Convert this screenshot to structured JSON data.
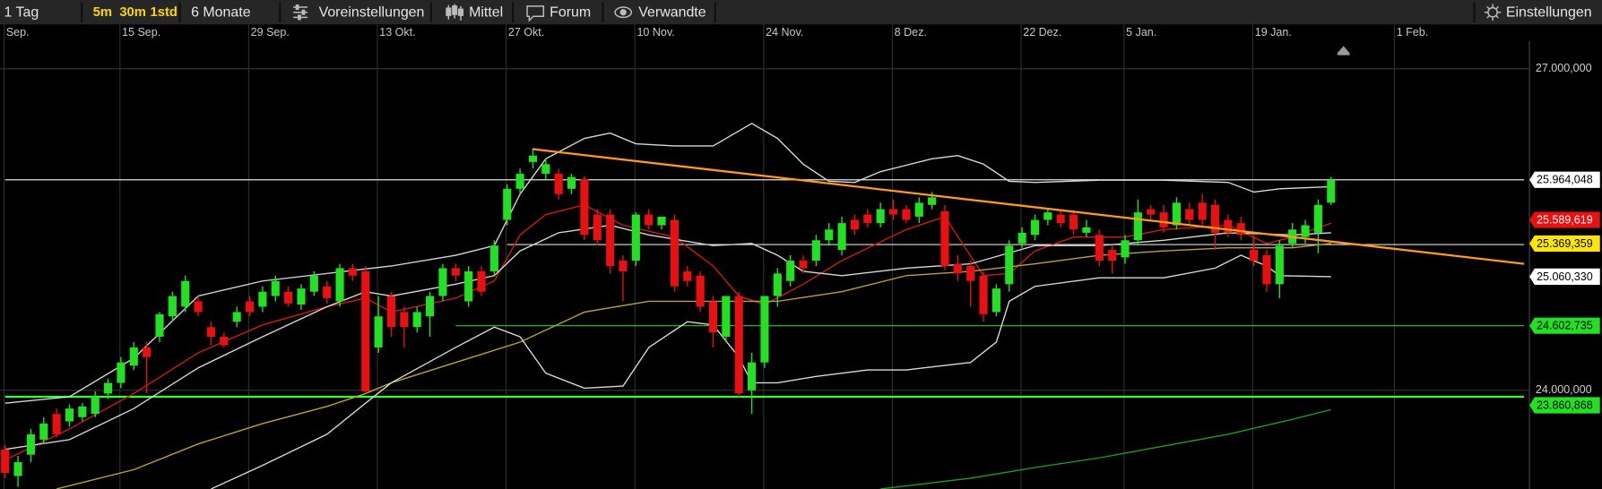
{
  "toolbar": {
    "items": [
      "1 Tag",
      "5m",
      "30m",
      "1std",
      "6 Monate",
      "Voreinstellungen",
      "Mittel",
      "Forum",
      "Verwandte"
    ],
    "settings": "Einstellungen"
  },
  "chart_data": {
    "type": "candlestick",
    "categories": [
      "Sep.",
      null,
      null,
      null,
      null,
      null,
      null,
      null,
      null,
      "15 Sep.",
      null,
      null,
      null,
      null,
      null,
      null,
      null,
      null,
      null,
      "29 Sep.",
      null,
      null,
      null,
      null,
      null,
      null,
      null,
      null,
      null,
      "13 Okt.",
      null,
      null,
      null,
      null,
      null,
      null,
      null,
      null,
      null,
      "27 Okt.",
      null,
      null,
      null,
      null,
      null,
      null,
      null,
      null,
      null,
      "10 Nov.",
      null,
      null,
      null,
      null,
      null,
      null,
      null,
      null,
      null,
      "24 Nov.",
      null,
      null,
      null,
      null,
      null,
      null,
      null,
      null,
      null,
      "8 Dez.",
      null,
      null,
      null,
      null,
      null,
      null,
      null,
      null,
      null,
      "22 Dez.",
      null,
      null,
      null,
      null,
      null,
      null,
      null,
      "5 Jan.",
      null,
      null,
      null,
      null,
      null,
      null,
      null,
      null,
      null,
      "19 Jan.",
      null,
      null,
      null,
      null,
      null,
      null,
      null,
      null,
      null,
      null,
      "1 Feb.",
      null,
      null,
      null,
      null,
      null,
      null,
      null,
      null,
      null,
      null
    ],
    "open": [
      23450,
      23200,
      23400,
      23540,
      23780,
      23710,
      23750,
      23780,
      23970,
      24070,
      24230,
      24400,
      24500,
      24690,
      24780,
      24830,
      24590,
      24500,
      24640,
      24830,
      24780,
      24880,
      24920,
      24800,
      24920,
      24970,
      24830,
      25140,
      25110,
      24400,
      24880,
      24730,
      24590,
      24690,
      24880,
      25140,
      24830,
      25110,
      25110,
      25590,
      25880,
      26130,
      26020,
      26020,
      25880,
      25970,
      25640,
      25640,
      25210,
      25210,
      25640,
      25540,
      25590,
      25110,
      25070,
      24830,
      24500,
      24880,
      24000,
      24260,
      24880,
      25020,
      25210,
      25210,
      25400,
      25310,
      25590,
      25640,
      25560,
      25690,
      25690,
      25620,
      25730,
      25670,
      25180,
      25160,
      25070,
      24730,
      24990,
      25370,
      25450,
      25590,
      25640,
      25640,
      25470,
      25450,
      25310,
      25240,
      25400,
      25690,
      25660,
      25540,
      25690,
      25750,
      25730,
      25590,
      25560,
      25310,
      25260,
      24990,
      25370,
      25430,
      25470,
      25750,
      null,
      null,
      null,
      null,
      null,
      null,
      null,
      null,
      null,
      null,
      null,
      null,
      null,
      null,
      null
    ],
    "high": [
      23490,
      23390,
      23640,
      23750,
      23830,
      23870,
      23880,
      23990,
      24110,
      24310,
      24450,
      24450,
      24730,
      24920,
      25070,
      24880,
      24640,
      24540,
      24780,
      24880,
      24970,
      25070,
      24970,
      24990,
      25110,
      25020,
      25180,
      25180,
      25160,
      24880,
      24920,
      24780,
      24780,
      24920,
      25180,
      25180,
      25160,
      25160,
      25400,
      25920,
      26070,
      26260,
      26160,
      26070,
      26020,
      26000,
      25690,
      25690,
      25260,
      25660,
      25690,
      25620,
      25640,
      25160,
      25110,
      24880,
      24880,
      24920,
      24350,
      24880,
      25140,
      25260,
      25260,
      25450,
      25560,
      25620,
      25640,
      25690,
      25750,
      25780,
      25730,
      25800,
      25850,
      25730,
      25260,
      25210,
      25110,
      24990,
      25400,
      25520,
      25640,
      25690,
      25690,
      25680,
      25590,
      25500,
      25350,
      25450,
      25780,
      25730,
      25730,
      25800,
      25750,
      25830,
      25780,
      25640,
      25620,
      25450,
      25310,
      25400,
      25560,
      25590,
      25780,
      25990,
      null,
      null,
      null,
      null,
      null,
      null,
      null,
      null,
      null,
      null,
      null,
      null,
      null,
      null,
      null
    ],
    "low": [
      23180,
      23100,
      23330,
      23500,
      23560,
      23660,
      23710,
      23750,
      23920,
      24020,
      24190,
      23970,
      24450,
      24640,
      24730,
      24690,
      24420,
      24400,
      24590,
      24690,
      24730,
      24830,
      24780,
      24750,
      24880,
      24810,
      24780,
      25020,
      23970,
      24350,
      24500,
      24400,
      24540,
      24500,
      24830,
      25020,
      24780,
      24880,
      25070,
      25540,
      25830,
      26070,
      25970,
      25780,
      25830,
      25400,
      25350,
      25090,
      24830,
      25160,
      25500,
      25500,
      24920,
      24970,
      24730,
      24400,
      24450,
      23940,
      23780,
      24210,
      24780,
      24970,
      25090,
      25160,
      25350,
      25260,
      25450,
      25520,
      25520,
      25590,
      25560,
      25560,
      25690,
      25120,
      25020,
      24780,
      24640,
      24690,
      24920,
      25330,
      25400,
      25540,
      25520,
      25450,
      25430,
      25160,
      25090,
      25180,
      25350,
      25590,
      25470,
      25500,
      25540,
      25540,
      25310,
      25430,
      25400,
      25160,
      24920,
      24860,
      25330,
      25370,
      25280,
      25730,
      null,
      null,
      null,
      null,
      null,
      null,
      null,
      null,
      null,
      null,
      null,
      null,
      null,
      null,
      null
    ],
    "close": [
      23230,
      23330,
      23590,
      23690,
      23590,
      23830,
      23850,
      23940,
      24070,
      24260,
      24400,
      24310,
      24710,
      24880,
      25020,
      24730,
      24500,
      24420,
      24730,
      24730,
      24920,
      25020,
      24810,
      24950,
      25070,
      24860,
      25140,
      25070,
      23990,
      24690,
      24590,
      24590,
      24730,
      24880,
      25140,
      25070,
      25110,
      24920,
      25350,
      25880,
      26020,
      26190,
      26110,
      25830,
      25990,
      25450,
      25400,
      25160,
      25110,
      25640,
      25540,
      25620,
      24970,
      25020,
      24780,
      24540,
      24880,
      23970,
      24260,
      24880,
      25090,
      25210,
      25140,
      25400,
      25500,
      25560,
      25500,
      25560,
      25690,
      25640,
      25590,
      25750,
      25800,
      25160,
      25090,
      25020,
      24710,
      24950,
      25350,
      25470,
      25590,
      25660,
      25560,
      25500,
      25520,
      25210,
      25210,
      25400,
      25660,
      25640,
      25520,
      25750,
      25590,
      25590,
      25470,
      25470,
      25450,
      25210,
      24990,
      25350,
      25500,
      25540,
      25730,
      25964.048,
      null,
      null,
      null,
      null,
      null,
      null,
      null,
      null,
      null,
      null,
      null,
      null,
      null,
      null,
      null
    ],
    "up_color": "#22e022",
    "down_color": "#e81010",
    "ylim": [
      23080,
      27260
    ],
    "yticks": [
      {
        "value": 27000,
        "label": "27.000,000"
      },
      {
        "value": 24000,
        "label": "24.000,000"
      }
    ],
    "grid": true,
    "indicators": [
      {
        "color": "#d01818",
        "x": [
          0,
          5,
          10,
          15,
          20,
          25,
          28,
          30,
          35,
          38,
          40,
          42,
          45,
          48,
          52,
          55,
          57,
          59,
          62,
          65,
          70,
          73,
          76,
          78,
          80,
          83,
          87,
          90,
          95,
          98,
          100,
          103
        ],
        "values": [
          23350,
          23640,
          23970,
          24350,
          24610,
          24780,
          24860,
          24730,
          24860,
          25020,
          25450,
          25640,
          25730,
          25540,
          25430,
          25160,
          24880,
          24800,
          24990,
          25210,
          25500,
          25620,
          25070,
          25090,
          25300,
          25430,
          25430,
          25500,
          25540,
          25370,
          25430,
          25560
        ]
      },
      {
        "color": "#b9a23a",
        "x": [
          4,
          10,
          15,
          20,
          25,
          28,
          30,
          35,
          40,
          45,
          50,
          55,
          60,
          65,
          70,
          75,
          80,
          85,
          90,
          95,
          100,
          103
        ],
        "values": [
          23080,
          23260,
          23500,
          23690,
          23850,
          23970,
          24070,
          24260,
          24450,
          24730,
          24830,
          24830,
          24830,
          24920,
          25070,
          25110,
          25180,
          25260,
          25300,
          25330,
          25330,
          25370
        ]
      },
      {
        "color": "#d8d8d8",
        "x": [
          0,
          5,
          10,
          15,
          20,
          25,
          30,
          35,
          38,
          40,
          42,
          45,
          47,
          49,
          52,
          55,
          57,
          58,
          60,
          62,
          64,
          66,
          68,
          70,
          72,
          74,
          76,
          78,
          80,
          85,
          90,
          95,
          97,
          99,
          103
        ],
        "values": [
          23880,
          23940,
          24300,
          24880,
          25020,
          25090,
          25160,
          25260,
          25350,
          25830,
          26160,
          26350,
          26400,
          26300,
          26280,
          26280,
          26420,
          26490,
          26350,
          26110,
          25950,
          25940,
          26040,
          26100,
          26160,
          26190,
          26110,
          25950,
          25940,
          25960,
          25960,
          25940,
          25850,
          25880,
          25900
        ]
      },
      {
        "color": "#d8d8d8",
        "x": [
          0,
          5,
          10,
          15,
          20,
          25,
          28,
          30,
          35,
          38,
          40,
          43,
          47,
          50,
          55,
          58,
          60,
          62,
          65,
          70,
          75,
          80,
          85,
          90,
          95,
          100,
          103
        ],
        "values": [
          23450,
          23540,
          23830,
          24210,
          24500,
          24780,
          24920,
          24880,
          24990,
          25070,
          25300,
          25470,
          25540,
          25450,
          25350,
          25370,
          25260,
          25110,
          25070,
          25140,
          25180,
          25350,
          25350,
          25400,
          25470,
          25450,
          25470
        ]
      },
      {
        "color": "#d8d8d8",
        "x": [
          16,
          20,
          25,
          28,
          30,
          35,
          38,
          40,
          42,
          45,
          48,
          50,
          53,
          55,
          57,
          58,
          60,
          63,
          67,
          70,
          75,
          77,
          78,
          80,
          85,
          90,
          94,
          96,
          98,
          99,
          103
        ],
        "values": [
          23080,
          23300,
          23590,
          23880,
          24070,
          24400,
          24590,
          24500,
          24160,
          24020,
          24040,
          24400,
          24640,
          24610,
          24310,
          24070,
          24070,
          24130,
          24190,
          24190,
          24260,
          24450,
          24830,
          24970,
          25050,
          25050,
          25140,
          25260,
          25160,
          25070,
          25060
        ]
      },
      {
        "color": "#1f9e1f",
        "x": [
          68,
          75,
          80,
          85,
          90,
          95,
          100,
          103
        ],
        "values": [
          23080,
          23180,
          23280,
          23370,
          23480,
          23590,
          23730,
          23820
        ]
      }
    ],
    "levels": [
      {
        "color": "#e0e0e0",
        "x": [
          0,
          118
        ],
        "values": [
          25964.048,
          25964.048
        ]
      },
      {
        "color": "#e0e0e0",
        "x": [
          39,
          118
        ],
        "values": [
          25360,
          25360
        ]
      },
      {
        "color": "#22d022",
        "x": [
          35,
          118
        ],
        "values": [
          24602.735,
          24602.735
        ]
      },
      {
        "color": "#33ff33",
        "x": [
          0,
          118
        ],
        "values": [
          23940,
          23940
        ]
      }
    ],
    "trendlines": [
      {
        "color": "#ff9a1a",
        "x": [
          41,
          118
        ],
        "values": [
          26250,
          25180
        ]
      }
    ],
    "price_labels": [
      {
        "value": 25964.048,
        "label": "25.964,048",
        "bg": "#ffffff",
        "fg": "#000000"
      },
      {
        "value": 25589.619,
        "label": "25.589,619",
        "bg": "#e81010",
        "fg": "#ffffff"
      },
      {
        "value": 25369.359,
        "label": "25.369,359",
        "bg": "#ffe600",
        "fg": "#000000"
      },
      {
        "value": 25060.33,
        "label": "25.060,330",
        "bg": "#ffffff",
        "fg": "#000000"
      },
      {
        "value": 24602.735,
        "label": "24.602,735",
        "bg": "#22e022",
        "fg": "#000000"
      },
      {
        "value": 23860.868,
        "label": "23.860,868",
        "bg": "#22e022",
        "fg": "#000000"
      }
    ]
  }
}
